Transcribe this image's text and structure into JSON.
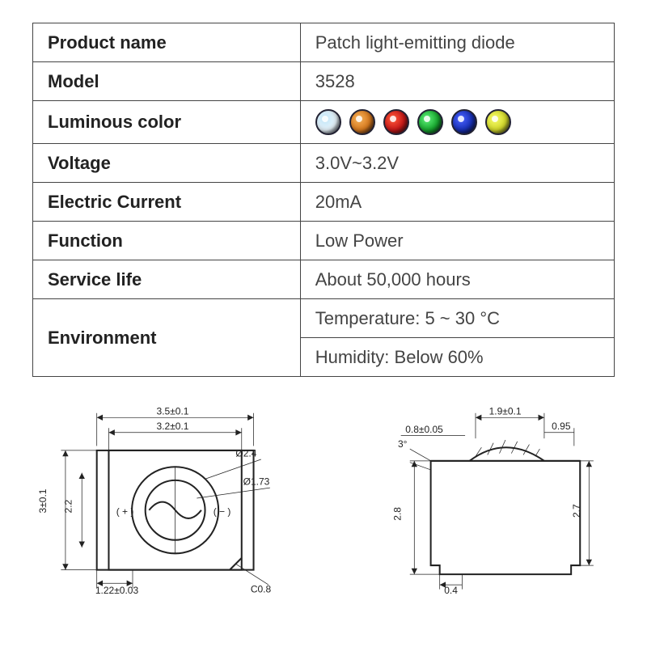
{
  "spec_table": {
    "columns": [
      "label",
      "value"
    ],
    "rows": [
      {
        "label": "Product name",
        "value": "Patch light-emitting diode",
        "type": "text"
      },
      {
        "label": "Model",
        "value": "3528",
        "type": "text"
      },
      {
        "label": "Luminous color",
        "type": "leds",
        "led_colors": [
          {
            "fill": "#e8f4fb",
            "glow": "#bfe4f7"
          },
          {
            "fill": "#d87a1e",
            "glow": "#f4b15a"
          },
          {
            "fill": "#c81818",
            "glow": "#ff5a3a"
          },
          {
            "fill": "#17a82e",
            "glow": "#5ff07a"
          },
          {
            "fill": "#1830b8",
            "glow": "#4a62ff"
          },
          {
            "fill": "#d2d82a",
            "glow": "#f6fb6a"
          }
        ]
      },
      {
        "label": "Voltage",
        "value": "3.0V~3.2V",
        "type": "text"
      },
      {
        "label": "Electric Current",
        "value": "20mA",
        "type": "text"
      },
      {
        "label": "Function",
        "value": "Low Power",
        "type": "text"
      },
      {
        "label": "Service life",
        "value": "About 50,000 hours",
        "type": "text"
      },
      {
        "label": "Environment",
        "value": "Temperature: 5 ~ 30 °C",
        "type": "text",
        "rowspan_label": 2
      },
      {
        "label": "",
        "value": "Humidity: Below 60%",
        "type": "text",
        "merge_up": true
      }
    ],
    "label_fontweight": 700,
    "value_fontweight": 400,
    "fontsize": 22,
    "border_color": "#444444",
    "text_color": "#333333"
  },
  "diagram_top": {
    "dims": {
      "outer_w": "3.5±0.1",
      "inner_w": "3.2±0.1",
      "d1": "Ø2.4",
      "d2": "Ø1.73",
      "h_outer": "3±0.1",
      "h_inner": "2.2",
      "pad": "1.22±0.03",
      "chamfer": "C0.8",
      "plus": "( + )",
      "minus": "( − )"
    },
    "colors": {
      "stroke": "#222222",
      "bg": "#ffffff"
    }
  },
  "diagram_side": {
    "dims": {
      "top_w": "1.9±0.1",
      "right_step": "0.95",
      "lens_h": "0.8±0.05",
      "angle": "3°",
      "body_h": "2.8",
      "overall_h": "2.7",
      "foot": "0.4"
    },
    "colors": {
      "stroke": "#222222",
      "bg": "#ffffff"
    }
  }
}
